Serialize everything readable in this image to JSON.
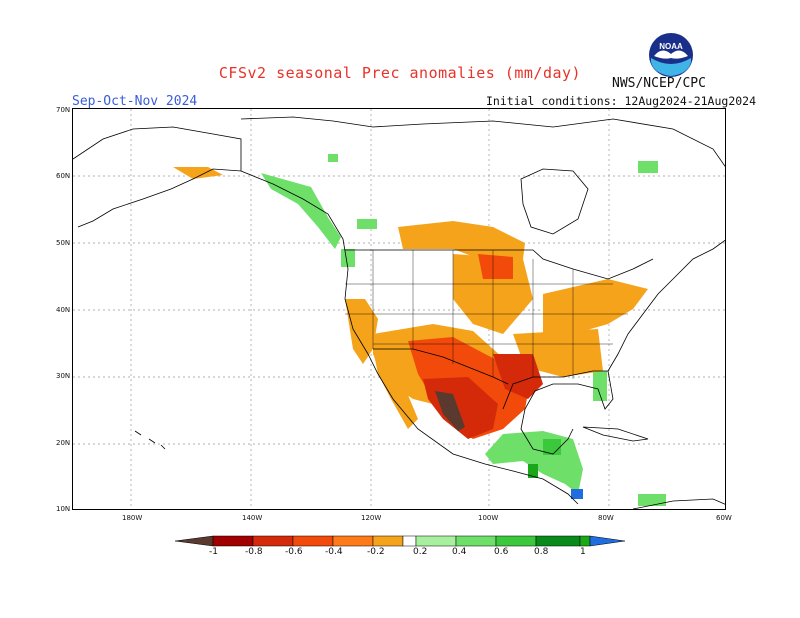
{
  "header": {
    "title": "CFSv2 seasonal Prec anomalies (mm/day)",
    "agency": "NWS/NCEP/CPC",
    "logo_text": "NOAA",
    "season": "Sep-Oct-Nov 2024",
    "initial_conditions": "Initial conditions: 12Aug2024-21Aug2024"
  },
  "map": {
    "lat_labels": [
      "70N",
      "60N",
      "50N",
      "40N",
      "30N",
      "20N",
      "10N"
    ],
    "lon_labels": [
      "180W",
      "140W",
      "120W",
      "100W",
      "80W",
      "60W"
    ],
    "region": "North America"
  },
  "colorbar": {
    "labels": [
      "-1",
      "-0.8",
      "-0.6",
      "-0.4",
      "-0.2",
      "0.2",
      "0.4",
      "0.6",
      "0.8",
      "1"
    ],
    "colors": [
      "#5a3a2e",
      "#a00000",
      "#d42a0a",
      "#f24a0a",
      "#ff7b1a",
      "#f5a31a",
      "#ffffff",
      "#a8f0a0",
      "#6ee06a",
      "#3cc83c",
      "#1aa81a",
      "#0a8a1a",
      "#1e6ee0"
    ]
  }
}
